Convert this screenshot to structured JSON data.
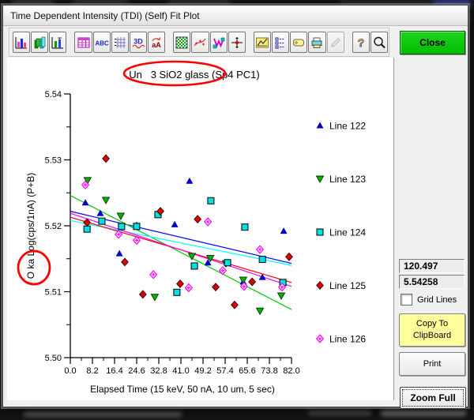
{
  "window": {
    "title": "Time Dependent Intensity (TDI) (Self) Fit Plot"
  },
  "toolbar": {
    "icon_labels": {
      "abc": "ABC",
      "three_d": "3D",
      "rotate": "aA",
      "help": "?"
    },
    "icons": [
      "bar-chart",
      "bar-chart-3d",
      "bar-chart-gallery",
      "data-grid",
      "text-labels",
      "axis-grid",
      "view-3d",
      "font-rotate",
      "pattern-fill",
      "curve-fit",
      "polygon-edit",
      "crosshair",
      "area-chart",
      "legend-list",
      "label-tag",
      "print-chart",
      "edit-pencil",
      "help",
      "zoom"
    ],
    "disabled_icons": [
      "edit-pencil"
    ]
  },
  "buttons": {
    "close": "Close"
  },
  "right_panel": {
    "cursor_x_value": "120.497",
    "cursor_y_value": "5.54258",
    "grid_lines_label": "Grid Lines",
    "grid_lines_checked": false,
    "copy_button_line1": "Copy To",
    "copy_button_line2": "ClipBoard",
    "print_button": "Print",
    "zoom_full_button": "Zoom Full"
  },
  "chart_data": {
    "type": "scatter",
    "title": "Un   3 SiO2 glass (Sp4 PC1)",
    "xlabel": "Elapsed Time (15 keV, 50 nA, 10 um, 5 sec)",
    "ylabel": "O ka Log(cps/1nA) (P+B)",
    "xlim": [
      0,
      82
    ],
    "ylim": [
      5.5,
      5.54
    ],
    "x_tick_labels": [
      "0.0",
      "8.2",
      "16.4",
      "24.6",
      "32.8",
      "41.0",
      "49.2",
      "57.4",
      "65.6",
      "73.8",
      "82.0"
    ],
    "y_tick_labels": [
      "5.50",
      "5.51",
      "5.52",
      "5.53",
      "5.54"
    ],
    "grid": false,
    "legend_position": "right",
    "series": [
      {
        "name": "Line 122",
        "marker": "triangle-up",
        "color": "#0000c8",
        "edge": "none",
        "points": [
          [
            5.6,
            5.5235
          ],
          [
            11.1,
            5.5219
          ],
          [
            18.2,
            5.5158
          ],
          [
            24.6,
            5.5201
          ],
          [
            38.7,
            5.5202
          ],
          [
            44.2,
            5.5268
          ],
          [
            51.0,
            5.5144
          ],
          [
            64.1,
            5.5115
          ],
          [
            71.2,
            5.5122
          ],
          [
            79.1,
            5.5192
          ]
        ]
      },
      {
        "name": "Line 123",
        "marker": "triangle-down",
        "color": "#00b400",
        "edge": "#003000",
        "points": [
          [
            6.4,
            5.5269
          ],
          [
            13.2,
            5.5239
          ],
          [
            18.7,
            5.5215
          ],
          [
            31.3,
            5.5092
          ],
          [
            45.1,
            5.5154
          ],
          [
            51.9,
            5.5151
          ],
          [
            57.7,
            5.5143
          ],
          [
            64.1,
            5.5118
          ],
          [
            70.3,
            5.5071
          ],
          [
            78.2,
            5.5094
          ]
        ]
      },
      {
        "name": "Line 124",
        "marker": "square",
        "color": "#00e0e0",
        "edge": "#000000",
        "points": [
          [
            6.2,
            5.5195
          ],
          [
            11.7,
            5.5207
          ],
          [
            19.0,
            5.5199
          ],
          [
            24.6,
            5.5199
          ],
          [
            32.5,
            5.5217
          ],
          [
            39.5,
            5.5099
          ],
          [
            46.0,
            5.5139
          ],
          [
            52.1,
            5.5238
          ],
          [
            58.3,
            5.5144
          ],
          [
            64.7,
            5.5198
          ],
          [
            71.2,
            5.5149
          ],
          [
            78.8,
            5.5114
          ]
        ]
      },
      {
        "name": "Line 125",
        "marker": "diamond",
        "color": "#dc0000",
        "edge": "#300000",
        "points": [
          [
            6.2,
            5.5205
          ],
          [
            13.2,
            5.5302
          ],
          [
            20.2,
            5.5145
          ],
          [
            26.9,
            5.5096
          ],
          [
            33.4,
            5.5222
          ],
          [
            40.7,
            5.5112
          ],
          [
            47.2,
            5.521
          ],
          [
            53.9,
            5.5107
          ],
          [
            60.9,
            5.508
          ],
          [
            67.4,
            5.5115
          ],
          [
            81.1,
            5.5153
          ]
        ]
      },
      {
        "name": "Line 126",
        "marker": "diamond-open",
        "color": "#ff00ff",
        "edge": "#ff00ff",
        "points": [
          [
            5.6,
            5.5262
          ],
          [
            17.9,
            5.5187
          ],
          [
            24.6,
            5.5178
          ],
          [
            30.8,
            5.5126
          ],
          [
            43.9,
            5.5106
          ],
          [
            51.0,
            5.5206
          ],
          [
            56.5,
            5.5132
          ],
          [
            64.4,
            5.5108
          ],
          [
            70.3,
            5.5164
          ],
          [
            78.5,
            5.5107
          ]
        ]
      }
    ],
    "fit_lines": [
      {
        "series": "Line 122",
        "color": "#0000ff",
        "y_start": 5.5222,
        "y_end": 5.5143
      },
      {
        "series": "Line 123",
        "color": "#00cc00",
        "y_start": 5.5246,
        "y_end": 5.5073
      },
      {
        "series": "Line 124",
        "color": "#00ffff",
        "y_start": 5.5208,
        "y_end": 5.514
      },
      {
        "series": "Line 125",
        "color": "#ff0000",
        "y_start": 5.5213,
        "y_end": 5.5114
      },
      {
        "series": "Line 126",
        "color": "#ff00ff",
        "y_start": 5.5219,
        "y_end": 5.5108
      }
    ],
    "annotations": [
      {
        "type": "ellipse",
        "target": "title-sio2-glass",
        "color": "#ff0000"
      },
      {
        "type": "ellipse",
        "target": "ylabel-o-ka",
        "color": "#ff0000"
      }
    ]
  }
}
